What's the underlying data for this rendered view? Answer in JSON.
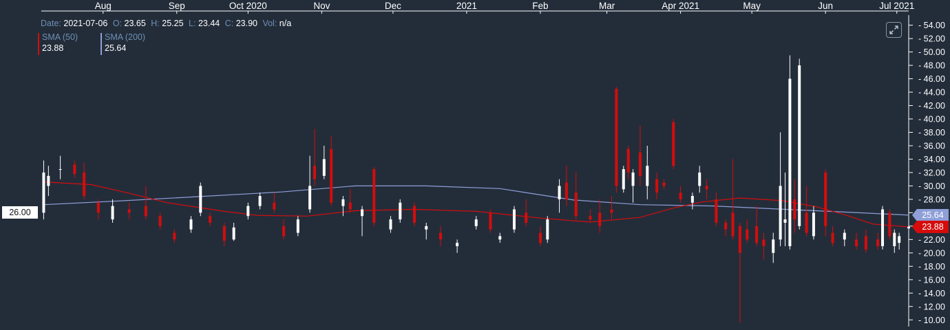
{
  "info": {
    "date_label": "Date:",
    "date": "2021-07-06",
    "o_label": "O:",
    "o": "23.65",
    "h_label": "H:",
    "h": "25.25",
    "l_label": "L:",
    "l": "23.44",
    "c_label": "C:",
    "c": "23.90",
    "vol_label": "Vol:",
    "vol": "n/a"
  },
  "indicators": [
    {
      "name": "SMA (50)",
      "value": "23.88",
      "color": "#d60c0c"
    },
    {
      "name": "SMA (200)",
      "value": "25.64",
      "color": "#8f9fd8"
    }
  ],
  "price_tags": {
    "crosshair": "26.00",
    "sma200": "25.64",
    "sma50": "23.88"
  },
  "colors": {
    "background": "#232d3a",
    "up": "#ffffff",
    "down": "#d60c0c",
    "sma50": "#d60c0c",
    "sma200": "#8f9fd8",
    "axis_text": "#ffffff"
  },
  "chart_data": {
    "type": "candlestick",
    "x_axis_labels": [
      "Aug",
      "Sep",
      "Oct 2020",
      "Nov",
      "Dec",
      "2021",
      "Feb",
      "Mar",
      "Apr 2021",
      "May",
      "Jun",
      "Jul 2021"
    ],
    "y_ticks": [
      "10.00",
      "12.00",
      "14.00",
      "16.00",
      "18.00",
      "20.00",
      "22.00",
      "24.00",
      "26.00",
      "28.00",
      "30.00",
      "32.00",
      "34.00",
      "36.00",
      "38.00",
      "40.00",
      "42.00",
      "44.00",
      "46.00",
      "48.00",
      "50.00",
      "52.00",
      "54.00"
    ],
    "ylim": [
      9,
      55.5
    ],
    "x_range": [
      "2020-07-06",
      "2021-07-06"
    ],
    "candles": [
      {
        "t": "2020-07-07",
        "o": 26.0,
        "h": 33.8,
        "l": 25.0,
        "c": 32.0
      },
      {
        "t": "2020-07-09",
        "o": 30.0,
        "h": 33.0,
        "l": 28.5,
        "c": 31.5
      },
      {
        "t": "2020-07-14",
        "o": 32.5,
        "h": 34.5,
        "l": 31.0,
        "c": 32.5
      },
      {
        "t": "2020-07-20",
        "o": 33.2,
        "h": 33.8,
        "l": 31.2,
        "c": 31.8
      },
      {
        "t": "2020-07-24",
        "o": 32.0,
        "h": 33.5,
        "l": 28.0,
        "c": 28.5
      },
      {
        "t": "2020-07-30",
        "o": 27.5,
        "h": 28.0,
        "l": 25.0,
        "c": 26.0
      },
      {
        "t": "2020-08-05",
        "o": 25.0,
        "h": 28.0,
        "l": 24.5,
        "c": 27.0
      },
      {
        "t": "2020-08-12",
        "o": 26.5,
        "h": 27.5,
        "l": 25.0,
        "c": 26.0
      },
      {
        "t": "2020-08-19",
        "o": 27.0,
        "h": 30.0,
        "l": 25.0,
        "c": 25.5
      },
      {
        "t": "2020-08-25",
        "o": 25.5,
        "h": 26.0,
        "l": 23.5,
        "c": 24.0
      },
      {
        "t": "2020-08-31",
        "o": 23.0,
        "h": 23.5,
        "l": 21.5,
        "c": 22.0
      },
      {
        "t": "2020-09-07",
        "o": 23.5,
        "h": 25.5,
        "l": 23.0,
        "c": 25.0
      },
      {
        "t": "2020-09-11",
        "o": 26.0,
        "h": 30.5,
        "l": 25.5,
        "c": 30.0
      },
      {
        "t": "2020-09-15",
        "o": 25.5,
        "h": 26.0,
        "l": 24.0,
        "c": 24.5
      },
      {
        "t": "2020-09-21",
        "o": 24.0,
        "h": 24.5,
        "l": 21.0,
        "c": 21.8
      },
      {
        "t": "2020-09-25",
        "o": 22.0,
        "h": 24.5,
        "l": 21.8,
        "c": 23.8
      },
      {
        "t": "2020-10-01",
        "o": 25.5,
        "h": 27.5,
        "l": 25.0,
        "c": 27.0
      },
      {
        "t": "2020-10-06",
        "o": 27.0,
        "h": 29.0,
        "l": 26.5,
        "c": 28.5
      },
      {
        "t": "2020-10-12",
        "o": 27.5,
        "h": 29.0,
        "l": 26.0,
        "c": 26.5
      },
      {
        "t": "2020-10-16",
        "o": 24.0,
        "h": 25.0,
        "l": 22.0,
        "c": 22.5
      },
      {
        "t": "2020-10-22",
        "o": 23.0,
        "h": 25.5,
        "l": 22.5,
        "c": 25.0
      },
      {
        "t": "2020-10-27",
        "o": 26.5,
        "h": 34.5,
        "l": 26.0,
        "c": 30.0
      },
      {
        "t": "2020-10-29",
        "o": 33.0,
        "h": 38.5,
        "l": 30.0,
        "c": 31.0
      },
      {
        "t": "2020-11-02",
        "o": 31.5,
        "h": 36.0,
        "l": 31.0,
        "c": 34.0
      },
      {
        "t": "2020-11-05",
        "o": 35.5,
        "h": 37.5,
        "l": 27.0,
        "c": 27.5
      },
      {
        "t": "2020-11-10",
        "o": 27.0,
        "h": 28.5,
        "l": 25.5,
        "c": 28.0
      },
      {
        "t": "2020-11-13",
        "o": 27.5,
        "h": 29.5,
        "l": 26.0,
        "c": 26.5
      },
      {
        "t": "2020-11-18",
        "o": 25.5,
        "h": 27.0,
        "l": 22.5,
        "c": 26.5
      },
      {
        "t": "2020-11-23",
        "o": 32.5,
        "h": 32.8,
        "l": 24.0,
        "c": 24.5
      },
      {
        "t": "2020-11-30",
        "o": 23.5,
        "h": 25.5,
        "l": 23.0,
        "c": 25.0
      },
      {
        "t": "2020-12-04",
        "o": 25.0,
        "h": 28.0,
        "l": 24.5,
        "c": 27.5
      },
      {
        "t": "2020-12-10",
        "o": 27.0,
        "h": 27.5,
        "l": 24.0,
        "c": 24.5
      },
      {
        "t": "2020-12-15",
        "o": 23.5,
        "h": 24.5,
        "l": 22.0,
        "c": 24.0
      },
      {
        "t": "2020-12-21",
        "o": 23.0,
        "h": 24.0,
        "l": 21.0,
        "c": 22.0
      },
      {
        "t": "2020-12-28",
        "o": 21.0,
        "h": 22.0,
        "l": 20.0,
        "c": 21.5
      },
      {
        "t": "2021-01-05",
        "o": 24.0,
        "h": 25.5,
        "l": 23.5,
        "c": 25.0
      },
      {
        "t": "2021-01-11",
        "o": 26.0,
        "h": 26.5,
        "l": 23.0,
        "c": 23.5
      },
      {
        "t": "2021-01-15",
        "o": 22.0,
        "h": 23.0,
        "l": 21.5,
        "c": 22.5
      },
      {
        "t": "2021-01-21",
        "o": 23.5,
        "h": 27.0,
        "l": 23.0,
        "c": 26.5
      },
      {
        "t": "2021-01-26",
        "o": 26.0,
        "h": 28.0,
        "l": 24.0,
        "c": 24.5
      },
      {
        "t": "2021-02-01",
        "o": 23.0,
        "h": 24.0,
        "l": 21.0,
        "c": 21.5
      },
      {
        "t": "2021-02-04",
        "o": 22.0,
        "h": 25.5,
        "l": 21.5,
        "c": 25.0
      },
      {
        "t": "2021-02-09",
        "o": 28.0,
        "h": 31.0,
        "l": 26.0,
        "c": 30.0
      },
      {
        "t": "2021-02-12",
        "o": 30.5,
        "h": 33.0,
        "l": 27.0,
        "c": 28.0
      },
      {
        "t": "2021-02-16",
        "o": 29.0,
        "h": 32.0,
        "l": 25.0,
        "c": 25.5
      },
      {
        "t": "2021-02-22",
        "o": 25.5,
        "h": 26.5,
        "l": 24.5,
        "c": 25.0
      },
      {
        "t": "2021-02-26",
        "o": 26.0,
        "h": 28.0,
        "l": 23.0,
        "c": 24.0
      },
      {
        "t": "2021-03-03",
        "o": 26.5,
        "h": 28.5,
        "l": 25.0,
        "c": 26.0
      },
      {
        "t": "2021-03-05",
        "o": 44.5,
        "h": 44.8,
        "l": 29.0,
        "c": 30.0
      },
      {
        "t": "2021-03-08",
        "o": 29.5,
        "h": 33.0,
        "l": 29.0,
        "c": 32.5
      },
      {
        "t": "2021-03-10",
        "o": 35.5,
        "h": 36.0,
        "l": 31.0,
        "c": 32.0
      },
      {
        "t": "2021-03-12",
        "o": 30.0,
        "h": 32.5,
        "l": 27.5,
        "c": 32.0
      },
      {
        "t": "2021-03-15",
        "o": 35.0,
        "h": 39.0,
        "l": 30.0,
        "c": 31.5
      },
      {
        "t": "2021-03-18",
        "o": 30.0,
        "h": 36.0,
        "l": 28.0,
        "c": 33.0
      },
      {
        "t": "2021-03-22",
        "o": 31.0,
        "h": 32.0,
        "l": 28.0,
        "c": 29.0
      },
      {
        "t": "2021-03-25",
        "o": 30.5,
        "h": 31.0,
        "l": 29.5,
        "c": 30.0
      },
      {
        "t": "2021-03-29",
        "o": 39.5,
        "h": 40.0,
        "l": 32.5,
        "c": 33.0
      },
      {
        "t": "2021-04-01",
        "o": 29.0,
        "h": 30.0,
        "l": 27.5,
        "c": 28.0
      },
      {
        "t": "2021-04-06",
        "o": 27.5,
        "h": 29.0,
        "l": 26.5,
        "c": 28.5
      },
      {
        "t": "2021-04-09",
        "o": 30.0,
        "h": 33.0,
        "l": 29.0,
        "c": 32.0
      },
      {
        "t": "2021-04-12",
        "o": 30.0,
        "h": 31.0,
        "l": 28.0,
        "c": 29.5
      },
      {
        "t": "2021-04-16",
        "o": 28.0,
        "h": 29.0,
        "l": 24.0,
        "c": 24.5
      },
      {
        "t": "2021-04-20",
        "o": 24.5,
        "h": 25.0,
        "l": 22.5,
        "c": 23.5
      },
      {
        "t": "2021-04-23",
        "o": 26.0,
        "h": 34.0,
        "l": 22.0,
        "c": 22.5
      },
      {
        "t": "2021-04-26",
        "o": 24.0,
        "h": 24.5,
        "l": 9.5,
        "c": 20.0
      },
      {
        "t": "2021-04-29",
        "o": 23.5,
        "h": 25.0,
        "l": 21.5,
        "c": 22.0
      },
      {
        "t": "2021-05-03",
        "o": 24.0,
        "h": 27.0,
        "l": 21.0,
        "c": 21.5
      },
      {
        "t": "2021-05-06",
        "o": 22.0,
        "h": 23.0,
        "l": 19.0,
        "c": 21.0
      },
      {
        "t": "2021-05-10",
        "o": 20.0,
        "h": 23.0,
        "l": 18.5,
        "c": 22.0
      },
      {
        "t": "2021-05-13",
        "o": 22.0,
        "h": 38.0,
        "l": 21.0,
        "c": 30.0
      },
      {
        "t": "2021-05-15",
        "o": 24.5,
        "h": 32.0,
        "l": 21.0,
        "c": 25.0
      },
      {
        "t": "2021-05-17",
        "o": 21.0,
        "h": 49.5,
        "l": 20.5,
        "c": 46.0
      },
      {
        "t": "2021-05-19",
        "o": 28.0,
        "h": 31.0,
        "l": 23.0,
        "c": 25.0
      },
      {
        "t": "2021-05-21",
        "o": 24.0,
        "h": 49.0,
        "l": 23.5,
        "c": 48.0
      },
      {
        "t": "2021-05-24",
        "o": 26.0,
        "h": 30.0,
        "l": 22.5,
        "c": 23.0
      },
      {
        "t": "2021-05-27",
        "o": 22.5,
        "h": 27.0,
        "l": 22.0,
        "c": 26.0
      },
      {
        "t": "2021-06-01",
        "o": 32.0,
        "h": 32.5,
        "l": 22.5,
        "c": 24.0
      },
      {
        "t": "2021-06-04",
        "o": 23.0,
        "h": 24.0,
        "l": 21.0,
        "c": 21.5
      },
      {
        "t": "2021-06-09",
        "o": 22.0,
        "h": 23.5,
        "l": 21.0,
        "c": 23.0
      },
      {
        "t": "2021-06-14",
        "o": 22.0,
        "h": 23.0,
        "l": 20.5,
        "c": 21.0
      },
      {
        "t": "2021-06-18",
        "o": 22.5,
        "h": 23.5,
        "l": 20.0,
        "c": 20.5
      },
      {
        "t": "2021-06-23",
        "o": 22.0,
        "h": 23.0,
        "l": 20.5,
        "c": 21.0
      },
      {
        "t": "2021-06-25",
        "o": 21.0,
        "h": 27.0,
        "l": 20.5,
        "c": 26.5
      },
      {
        "t": "2021-06-28",
        "o": 26.0,
        "h": 26.5,
        "l": 22.0,
        "c": 22.5
      },
      {
        "t": "2021-06-30",
        "o": 21.0,
        "h": 23.5,
        "l": 20.0,
        "c": 23.0
      },
      {
        "t": "2021-07-02",
        "o": 21.5,
        "h": 23.0,
        "l": 20.5,
        "c": 22.5
      },
      {
        "t": "2021-07-06",
        "o": 23.65,
        "h": 25.25,
        "l": 23.44,
        "c": 23.9
      }
    ],
    "sma50": [
      {
        "t": "2020-07-07",
        "v": 30.6
      },
      {
        "t": "2020-07-27",
        "v": 30.2
      },
      {
        "t": "2020-08-12",
        "v": 28.9
      },
      {
        "t": "2020-08-28",
        "v": 27.5
      },
      {
        "t": "2020-09-21",
        "v": 26.2
      },
      {
        "t": "2020-10-05",
        "v": 25.6
      },
      {
        "t": "2020-10-26",
        "v": 25.5
      },
      {
        "t": "2020-11-15",
        "v": 26.3
      },
      {
        "t": "2020-12-10",
        "v": 26.5
      },
      {
        "t": "2021-01-05",
        "v": 26.2
      },
      {
        "t": "2021-02-01",
        "v": 25.2
      },
      {
        "t": "2021-02-22",
        "v": 24.6
      },
      {
        "t": "2021-03-15",
        "v": 25.3
      },
      {
        "t": "2021-03-29",
        "v": 26.7
      },
      {
        "t": "2021-04-10",
        "v": 27.6
      },
      {
        "t": "2021-04-26",
        "v": 28.2
      },
      {
        "t": "2021-05-14",
        "v": 27.8
      },
      {
        "t": "2021-05-28",
        "v": 26.9
      },
      {
        "t": "2021-06-10",
        "v": 25.6
      },
      {
        "t": "2021-06-21",
        "v": 24.3
      },
      {
        "t": "2021-07-06",
        "v": 23.88
      }
    ],
    "sma200": [
      {
        "t": "2020-07-07",
        "v": 27.2
      },
      {
        "t": "2020-08-10",
        "v": 27.8
      },
      {
        "t": "2020-09-10",
        "v": 28.4
      },
      {
        "t": "2020-10-15",
        "v": 29.1
      },
      {
        "t": "2020-11-15",
        "v": 30.0
      },
      {
        "t": "2020-12-15",
        "v": 30.0
      },
      {
        "t": "2021-01-15",
        "v": 29.6
      },
      {
        "t": "2021-02-15",
        "v": 27.9
      },
      {
        "t": "2021-03-15",
        "v": 27.2
      },
      {
        "t": "2021-04-15",
        "v": 27.0
      },
      {
        "t": "2021-05-15",
        "v": 26.5
      },
      {
        "t": "2021-06-15",
        "v": 26.0
      },
      {
        "t": "2021-07-06",
        "v": 25.64
      }
    ]
  }
}
